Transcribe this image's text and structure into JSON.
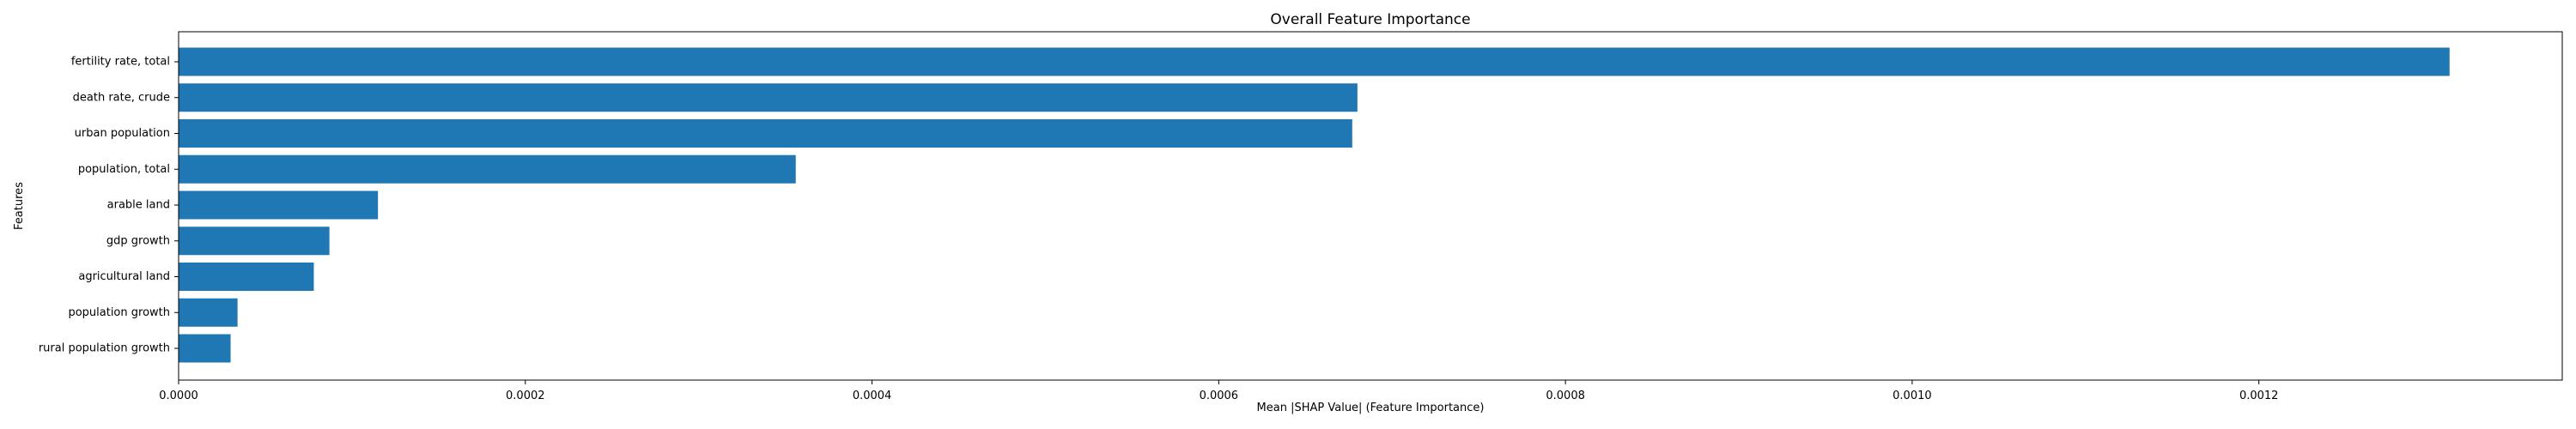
{
  "chart_data": {
    "type": "bar",
    "orientation": "horizontal",
    "title": "Overall Feature Importance",
    "xlabel": "Mean |SHAP Value| (Feature Importance)",
    "ylabel": "Features",
    "categories": [
      "fertility rate, total",
      "death rate, crude",
      "urban population",
      "population, total",
      "arable land",
      "gdp growth",
      "agricultural land",
      "population growth",
      "rural population growth"
    ],
    "values": [
      0.00131,
      0.00068,
      0.000677,
      0.000356,
      0.000115,
      8.7e-05,
      7.8e-05,
      3.4e-05,
      3e-05
    ],
    "xlim": [
      0,
      0.001375
    ],
    "xticks": [
      0.0,
      0.0002,
      0.0004,
      0.0006,
      0.0008,
      0.001,
      0.0012
    ],
    "xtick_labels": [
      "0.0000",
      "0.0002",
      "0.0004",
      "0.0006",
      "0.0008",
      "0.0010",
      "0.0012"
    ],
    "bar_color": "#1f77b4",
    "grid": false
  }
}
